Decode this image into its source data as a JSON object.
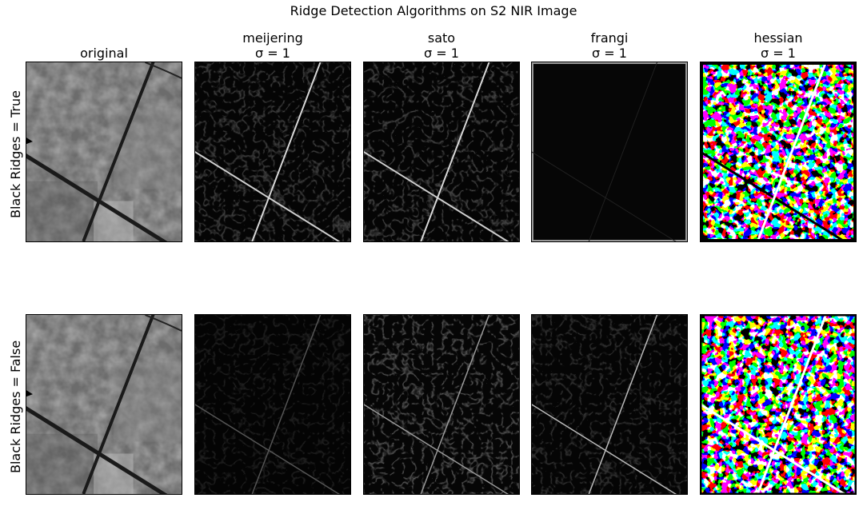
{
  "figure": {
    "title": "Ridge Detection Algorithms on S2 NIR Image",
    "columns": [
      {
        "name": "original",
        "sigma": ""
      },
      {
        "name": "meijering",
        "sigma": "σ = 1"
      },
      {
        "name": "sato",
        "sigma": "σ = 1"
      },
      {
        "name": "frangi",
        "sigma": "σ = 1"
      },
      {
        "name": "hessian",
        "sigma": "σ = 1"
      }
    ],
    "rows": [
      {
        "label": "Black Ridges = True"
      },
      {
        "label": "Black Ridges = False"
      }
    ]
  },
  "colors": {
    "background": "#ffffff",
    "frame": "#000000",
    "ridge_bright": "#ffffff",
    "ridge_dark": "#000000"
  }
}
